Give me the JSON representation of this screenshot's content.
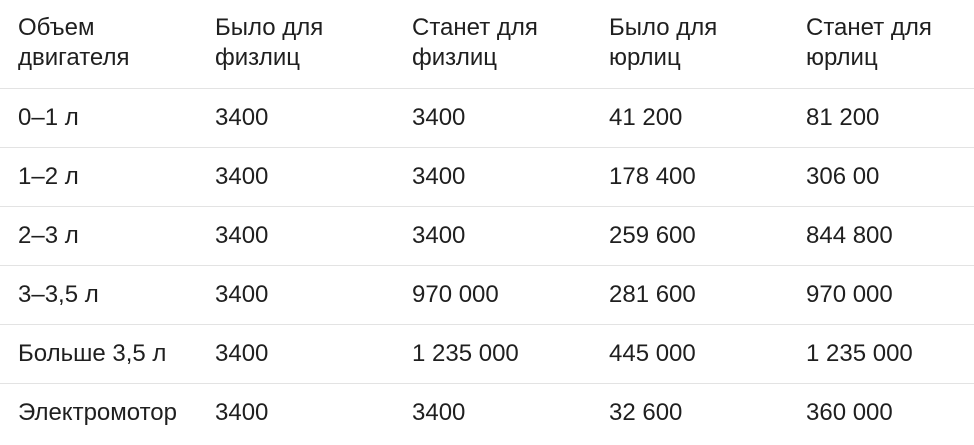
{
  "table": {
    "headers": [
      "Объем двигателя",
      "Было для физлиц",
      "Станет для физлиц",
      "Было для юрлиц",
      "Станет для юрлиц"
    ],
    "rows": [
      [
        "0–1 л",
        "3400",
        "3400",
        "41 200",
        "81 200"
      ],
      [
        "1–2 л",
        "3400",
        "3400",
        "178 400",
        "306 00"
      ],
      [
        "2–3 л",
        "3400",
        "3400",
        "259 600",
        "844 800"
      ],
      [
        "3–3,5 л",
        "3400",
        "970 000",
        "281 600",
        "970 000"
      ],
      [
        "Больше 3,5 л",
        "3400",
        "1 235 000",
        "445 000",
        "1 235 000"
      ],
      [
        "Электромотор",
        "3400",
        "3400",
        "32 600",
        "360 000"
      ]
    ]
  }
}
